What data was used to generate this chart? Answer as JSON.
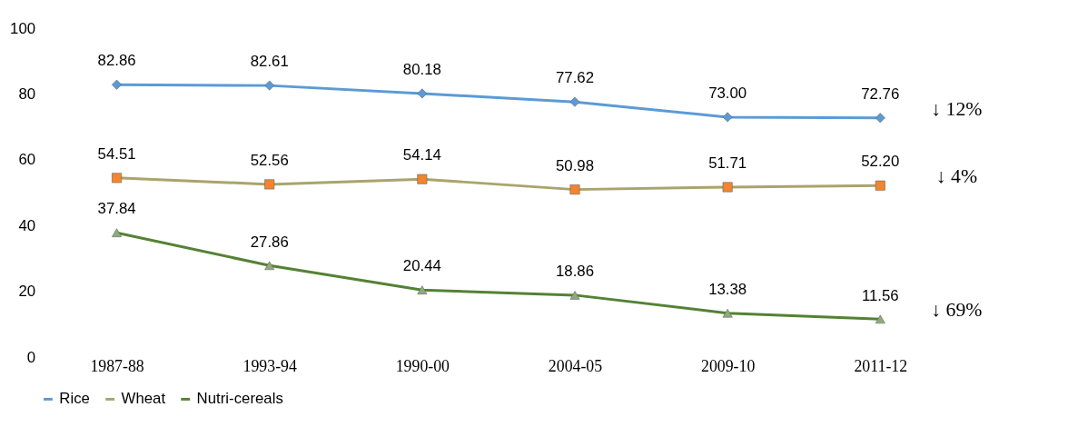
{
  "chart_data": {
    "type": "line",
    "categories": [
      "1987-88",
      "1993-94",
      "1990-00",
      "2004-05",
      "2009-10",
      "2011-12"
    ],
    "series": [
      {
        "name": "Rice",
        "color": "#5b9bd5",
        "colors": [
          "#5b9bd5",
          "#5b9bd5",
          "#5b9bd5",
          "#5b9bd5",
          "#5b9bd5",
          "#5b9bd5"
        ],
        "marker": "diamond",
        "values": [
          82.86,
          82.61,
          80.18,
          77.62,
          73.0,
          72.76
        ],
        "value_labels": [
          "82.86",
          "82.61",
          "80.18",
          "77.62",
          "73.00",
          "72.76"
        ]
      },
      {
        "name": "Wheat",
        "color": "#a9a46c",
        "colors": [
          "#f4842d",
          "#f4842d",
          "#f4842d",
          "#f4842d",
          "#f4842d",
          "#f4842d"
        ],
        "marker": "square",
        "values": [
          54.51,
          52.56,
          54.14,
          50.98,
          51.71,
          52.2
        ],
        "value_labels": [
          "54.51",
          "52.56",
          "54.14",
          "50.98",
          "51.71",
          "52.20"
        ]
      },
      {
        "name": "Nutri-cereals",
        "color": "#548235",
        "colors": [
          "#8faa7c",
          "#8faa7c",
          "#8faa7c",
          "#8faa7c",
          "#8faa7c",
          "#8faa7c"
        ],
        "marker": "triangle",
        "values": [
          37.84,
          27.86,
          20.44,
          18.86,
          13.38,
          11.56
        ],
        "value_labels": [
          "37.84",
          "27.86",
          "20.44",
          "18.86",
          "13.38",
          "11.56"
        ]
      }
    ],
    "ylim": [
      0,
      100
    ],
    "yticks": [
      0,
      20,
      40,
      60,
      80,
      100
    ],
    "grid": false,
    "legend": "bottom",
    "line_style": "solid",
    "data_labels": true,
    "annotations": [
      "↓ 12%",
      "↓ 4%",
      "↓ 69%"
    ]
  }
}
